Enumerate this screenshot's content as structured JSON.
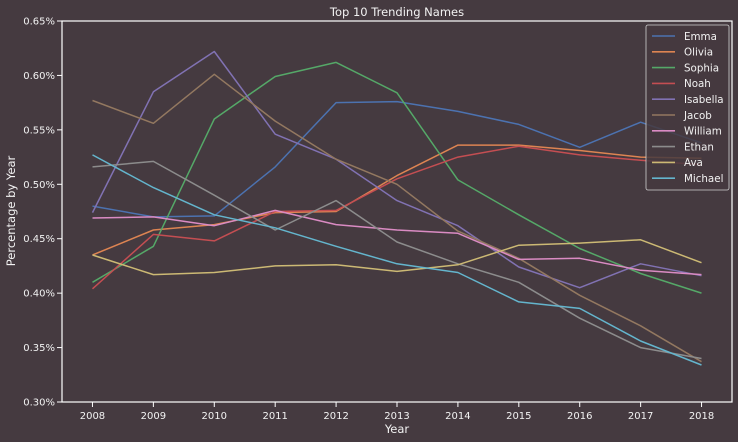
{
  "chart_data": {
    "type": "line",
    "title": "Top 10 Trending Names",
    "xlabel": "Year",
    "ylabel": "Percentage by Year",
    "x": [
      2008,
      2009,
      2010,
      2011,
      2012,
      2013,
      2014,
      2015,
      2016,
      2017,
      2018
    ],
    "ylim": [
      0.3,
      0.65
    ],
    "yticks": [
      "0.30%",
      "0.35%",
      "0.40%",
      "0.45%",
      "0.50%",
      "0.55%",
      "0.60%",
      "0.65%"
    ],
    "grid": false,
    "legend_position": "top-right",
    "series": [
      {
        "name": "Emma",
        "color": "#4c72b0",
        "values": [
          0.48,
          0.47,
          0.471,
          0.516,
          0.575,
          0.576,
          0.567,
          0.555,
          0.534,
          0.557,
          0.538
        ]
      },
      {
        "name": "Olivia",
        "color": "#dd8452",
        "values": [
          0.435,
          0.458,
          0.463,
          0.474,
          0.475,
          0.508,
          0.536,
          0.536,
          0.531,
          0.525,
          0.524
        ]
      },
      {
        "name": "Sophia",
        "color": "#55a868",
        "values": [
          0.41,
          0.443,
          0.56,
          0.599,
          0.612,
          0.584,
          0.504,
          0.472,
          0.441,
          0.418,
          0.4
        ]
      },
      {
        "name": "Noah",
        "color": "#c44e52",
        "values": [
          0.404,
          0.454,
          0.448,
          0.475,
          0.476,
          0.505,
          0.525,
          0.535,
          0.527,
          0.522,
          0.518
        ]
      },
      {
        "name": "Isabella",
        "color": "#8172b3",
        "values": [
          0.474,
          0.585,
          0.622,
          0.546,
          0.523,
          0.485,
          0.462,
          0.424,
          0.405,
          0.427,
          0.416
        ]
      },
      {
        "name": "Jacob",
        "color": "#937860",
        "values": [
          0.577,
          0.556,
          0.601,
          0.558,
          0.523,
          0.5,
          0.457,
          0.432,
          0.398,
          0.37,
          0.337
        ]
      },
      {
        "name": "William",
        "color": "#da8bc3",
        "values": [
          0.469,
          0.47,
          0.462,
          0.476,
          0.463,
          0.458,
          0.455,
          0.431,
          0.432,
          0.421,
          0.417
        ]
      },
      {
        "name": "Ethan",
        "color": "#8c8c8c",
        "values": [
          0.516,
          0.521,
          0.49,
          0.458,
          0.485,
          0.447,
          0.427,
          0.41,
          0.377,
          0.35,
          0.34
        ]
      },
      {
        "name": "Ava",
        "color": "#ccb974",
        "values": [
          0.435,
          0.417,
          0.419,
          0.425,
          0.426,
          0.42,
          0.426,
          0.444,
          0.446,
          0.449,
          0.428
        ]
      },
      {
        "name": "Michael",
        "color": "#64b5cd",
        "values": [
          0.527,
          0.497,
          0.472,
          0.46,
          0.443,
          0.427,
          0.419,
          0.392,
          0.386,
          0.356,
          0.334
        ]
      }
    ]
  }
}
